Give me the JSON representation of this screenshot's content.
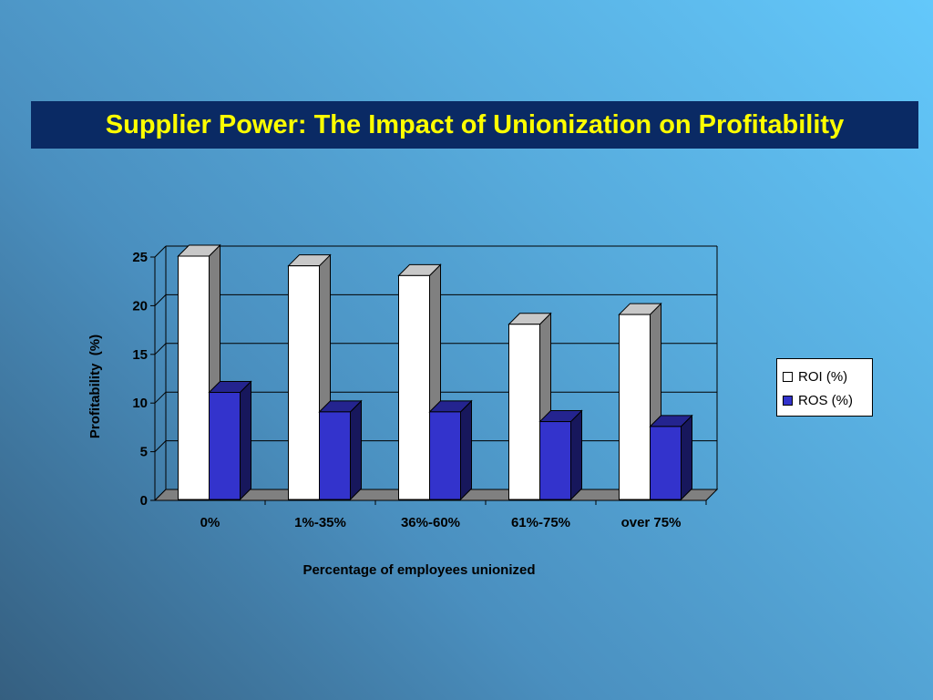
{
  "slide": {
    "title": "Supplier Power: The Impact of Unionization on Profitability"
  },
  "colors": {
    "title_background": "#0a2a64",
    "title_text": "#ffff00",
    "roi_bar": "#ffffff",
    "ros_bar": "#3333cc"
  },
  "chart_data": {
    "type": "bar",
    "style": "3d-clustered-column",
    "title": "",
    "xlabel": "Percentage of employees unionized",
    "ylabel": "Profitability  (%)",
    "categories": [
      "0%",
      "1%-35%",
      "36%-60%",
      "61%-75%",
      "over 75%"
    ],
    "series": [
      {
        "name": "ROI (%)",
        "values": [
          25,
          24,
          23,
          18,
          19
        ],
        "color": "#ffffff"
      },
      {
        "name": "ROS (%)",
        "values": [
          11,
          9,
          9,
          8,
          7.5
        ],
        "color": "#3333cc"
      }
    ],
    "ylim": [
      0,
      25
    ],
    "yticks": [
      "0",
      "5",
      "10",
      "15",
      "20",
      "25"
    ],
    "grid": true,
    "legend_position": "right"
  }
}
